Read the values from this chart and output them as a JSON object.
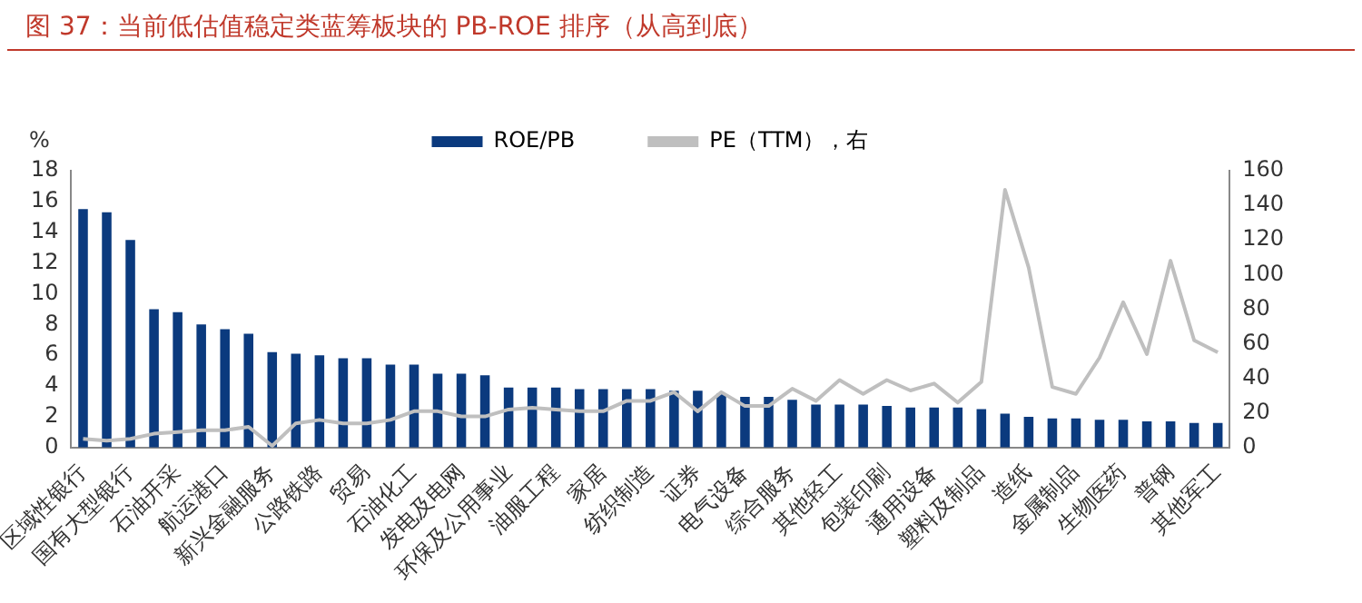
{
  "chart_data": {
    "type": "bar",
    "title": "图 37：当前低估值稳定类蓝筹板块的 PB-ROE 排序（从高到底）",
    "ylabel": "%",
    "categories": [
      "区域性银行",
      null,
      "国有大型银行",
      null,
      "石油开采",
      null,
      "航运港口",
      null,
      "新兴金融服务",
      null,
      "公路铁路",
      null,
      "贸易",
      null,
      "石油化工",
      null,
      "发电及电网",
      null,
      "环保及公用事业",
      null,
      "油服工程",
      null,
      "家居",
      null,
      "纺织制造",
      null,
      "证券",
      null,
      "电气设备",
      null,
      "综合服务",
      null,
      "其他轻工",
      null,
      "包装印刷",
      null,
      "通用设备",
      null,
      "塑料及制品",
      null,
      "造纸",
      null,
      "金属制品",
      null,
      "生物医药",
      null,
      "普钢",
      null,
      "其他军工"
    ],
    "series": [
      {
        "name": "ROE/PB",
        "color": "#0b3a7e",
        "values": [
          15.5,
          15.3,
          13.5,
          9.0,
          8.8,
          8.0,
          7.7,
          7.4,
          6.2,
          6.1,
          6.0,
          5.8,
          5.8,
          5.4,
          5.4,
          4.8,
          4.8,
          4.7,
          3.9,
          3.9,
          3.9,
          3.8,
          3.8,
          3.8,
          3.8,
          3.7,
          3.7,
          3.5,
          3.3,
          3.3,
          3.1,
          2.8,
          2.8,
          2.8,
          2.7,
          2.6,
          2.6,
          2.6,
          2.5,
          2.2,
          2.0,
          1.9,
          1.9,
          1.8,
          1.8,
          1.7,
          1.7,
          1.6,
          1.6
        ]
      },
      {
        "name": "PE（TTM），右",
        "type": "line",
        "axis": "y2",
        "color": "#bfbfbf",
        "values": [
          5,
          4,
          5,
          8,
          9,
          10,
          10,
          12,
          1,
          14,
          16,
          14,
          14,
          16,
          21,
          21,
          18,
          18,
          22,
          23,
          22,
          21,
          21,
          27,
          27,
          32,
          21,
          32,
          24,
          24,
          34,
          27,
          39,
          31,
          39,
          33,
          37,
          26,
          38,
          149,
          104,
          35,
          31,
          52,
          84,
          54,
          108,
          62,
          55
        ]
      }
    ],
    "ylim": [
      0,
      18
    ],
    "yticks": [
      0,
      2,
      4,
      6,
      8,
      10,
      12,
      14,
      16,
      18
    ],
    "y2lim": [
      0,
      160
    ],
    "y2ticks": [
      0,
      20,
      40,
      60,
      80,
      100,
      120,
      140,
      160
    ],
    "grid": false,
    "legend": "top",
    "marker": "none",
    "line_style": "solid"
  }
}
